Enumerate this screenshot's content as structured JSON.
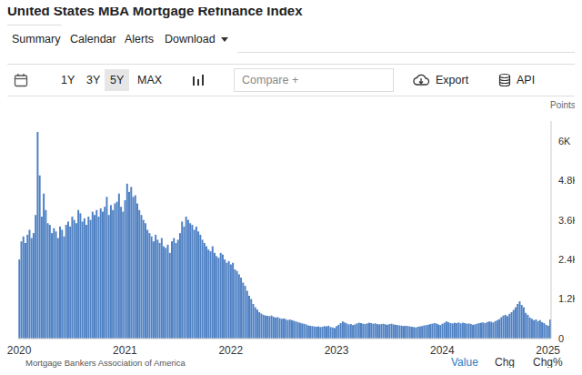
{
  "chart_data": {
    "type": "bar",
    "title": "United States MBA Mortgage Refinance Index",
    "y_label": "Points",
    "source": "Mortgage Bankers Association of America",
    "categories": [
      "2020",
      null,
      null,
      null,
      null,
      null,
      null,
      null,
      null,
      null,
      null,
      null,
      null,
      null,
      null,
      null,
      null,
      null,
      null,
      null,
      null,
      null,
      null,
      null,
      null,
      null,
      null,
      null,
      null,
      null,
      null,
      null,
      null,
      null,
      null,
      null,
      null,
      null,
      null,
      null,
      null,
      null,
      null,
      null,
      null,
      null,
      null,
      null,
      null,
      null,
      null,
      null,
      "2021",
      null,
      null,
      null,
      null,
      null,
      null,
      null,
      null,
      null,
      null,
      null,
      null,
      null,
      null,
      null,
      null,
      null,
      null,
      null,
      null,
      null,
      null,
      null,
      null,
      null,
      null,
      null,
      null,
      null,
      null,
      null,
      null,
      null,
      null,
      null,
      null,
      null,
      null,
      null,
      null,
      null,
      null,
      null,
      null,
      null,
      null,
      null,
      null,
      null,
      null,
      null,
      "2022",
      null,
      null,
      null,
      null,
      null,
      null,
      null,
      null,
      null,
      null,
      null,
      null,
      null,
      null,
      null,
      null,
      null,
      null,
      null,
      null,
      null,
      null,
      null,
      null,
      null,
      null,
      null,
      null,
      null,
      null,
      null,
      null,
      null,
      null,
      null,
      null,
      null,
      null,
      null,
      null,
      null,
      null,
      null,
      null,
      null,
      null,
      null,
      null,
      null,
      null,
      null,
      "2023",
      null,
      null,
      null,
      null,
      null,
      null,
      null,
      null,
      null,
      null,
      null,
      null,
      null,
      null,
      null,
      null,
      null,
      null,
      null,
      null,
      null,
      null,
      null,
      null,
      null,
      null,
      null,
      null,
      null,
      null,
      null,
      null,
      null,
      null,
      null,
      null,
      null,
      null,
      null,
      null,
      null,
      null,
      null,
      null,
      null,
      null,
      null,
      null,
      null,
      null,
      null,
      "2024",
      null,
      null,
      null,
      null,
      null,
      null,
      null,
      null,
      null,
      null,
      null,
      null,
      null,
      null,
      null,
      null,
      null,
      null,
      null,
      null,
      null,
      null,
      null,
      null,
      null,
      null,
      null,
      null,
      null,
      null,
      null,
      null,
      null,
      null,
      null,
      null,
      null,
      null,
      null,
      null,
      null,
      null,
      null,
      null,
      null,
      null,
      null,
      null,
      null,
      null,
      null,
      "2025",
      null
    ],
    "values": [
      2400,
      2950,
      3100,
      2900,
      3150,
      3300,
      3050,
      3200,
      3750,
      6270,
      4950,
      3700,
      4400,
      3900,
      3500,
      3450,
      3200,
      3350,
      3250,
      3050,
      3400,
      3300,
      3100,
      3450,
      3550,
      3400,
      3700,
      3600,
      3500,
      3900,
      3800,
      3550,
      3650,
      3450,
      3700,
      3600,
      3850,
      3750,
      3900,
      3700,
      3950,
      3850,
      4000,
      4300,
      3750,
      4050,
      3900,
      4100,
      4150,
      4400,
      4000,
      3850,
      4200,
      4700,
      4450,
      4600,
      4300,
      4350,
      4100,
      3900,
      3750,
      3600,
      3500,
      3300,
      3200,
      3100,
      2950,
      3150,
      3000,
      2900,
      3050,
      2800,
      2750,
      2850,
      2600,
      2950,
      3050,
      2900,
      3000,
      3200,
      3550,
      3400,
      3700,
      3600,
      3500,
      3450,
      3300,
      3400,
      3250,
      3150,
      3000,
      2900,
      2800,
      2700,
      2650,
      2800,
      2600,
      2500,
      2450,
      2600,
      2550,
      2400,
      2300,
      2350,
      2250,
      2300,
      2100,
      2050,
      1950,
      1850,
      1700,
      1600,
      1450,
      1300,
      1200,
      1050,
      950,
      880,
      800,
      760,
      720,
      700,
      690,
      680,
      700,
      660,
      640,
      650,
      620,
      600,
      610,
      590,
      560,
      580,
      560,
      540,
      520,
      500,
      480,
      460,
      450,
      430,
      400,
      390,
      380,
      370,
      360,
      370,
      350,
      360,
      380,
      370,
      390,
      350,
      340,
      320,
      380,
      420,
      470,
      520,
      490,
      460,
      430,
      440,
      410,
      430,
      460,
      480,
      470,
      450,
      440,
      460,
      480,
      470,
      450,
      460,
      440,
      430,
      440,
      450,
      430,
      420,
      440,
      450,
      430,
      420,
      410,
      400,
      390,
      380,
      390,
      380,
      370,
      360,
      350,
      340,
      360,
      370,
      380,
      400,
      410,
      420,
      440,
      450,
      470,
      460,
      430,
      410,
      450,
      480,
      520,
      500,
      470,
      460,
      480,
      470,
      490,
      460,
      480,
      470,
      450,
      460,
      440,
      420,
      430,
      450,
      470,
      480,
      490,
      470,
      500,
      520,
      510,
      490,
      530,
      560,
      590,
      650,
      700,
      720,
      680,
      750,
      800,
      870,
      950,
      1050,
      1130,
      1020,
      950,
      780,
      720,
      640,
      600,
      560,
      580,
      530,
      560,
      500,
      470,
      420,
      390,
      580
    ],
    "color": "#4f81c4",
    "ylim": [
      0,
      6600
    ],
    "yticks": [
      0,
      {
        "value": 1200,
        "label": "1.2K"
      },
      {
        "value": 2400,
        "label": "2.4K"
      },
      {
        "value": 3600,
        "label": "3.6K"
      },
      {
        "value": 4800,
        "label": "4.8K"
      },
      {
        "value": 6000,
        "label": "6K"
      }
    ],
    "grid": false
  },
  "page": {
    "tabs": [
      "Summary",
      "Calendar",
      "Alerts",
      "Download"
    ],
    "active_tab": "Summary",
    "ranges": [
      "1Y",
      "3Y",
      "5Y",
      "MAX"
    ],
    "active_range": "5Y",
    "compare": "Compare +",
    "export": "Export",
    "api": "API",
    "footer_tabs": [
      "Value",
      "Chg",
      "Chg%"
    ],
    "active_footer": "Value"
  }
}
